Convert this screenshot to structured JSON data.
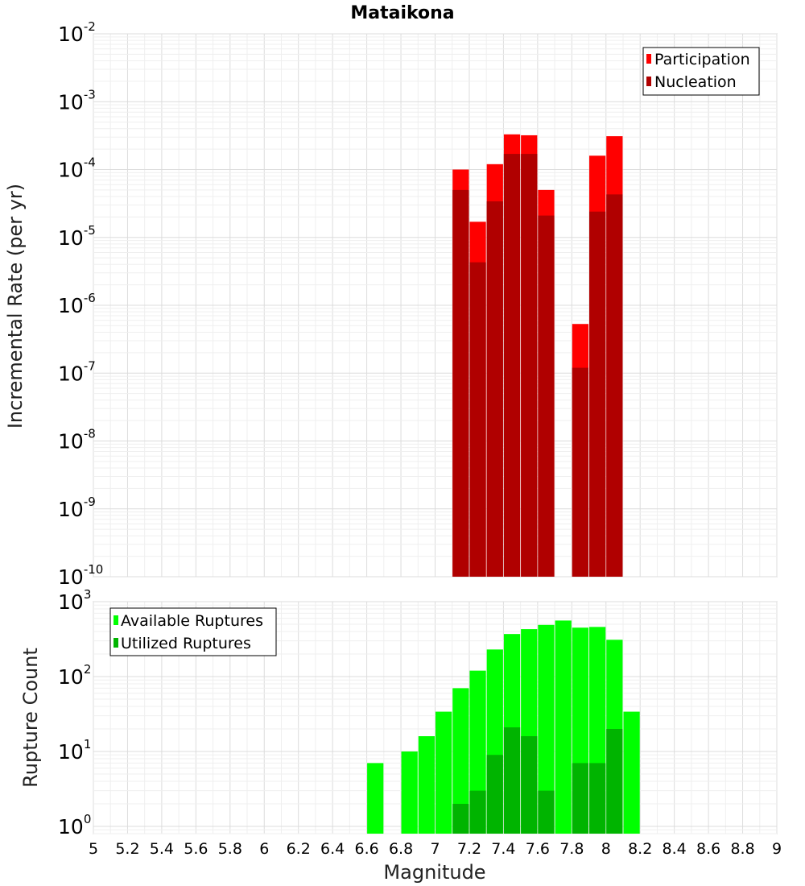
{
  "figure_title": "Mataikona",
  "colors": {
    "participation": "#ff0000",
    "nucleation": "#b00000",
    "available": "#00ff00",
    "utilized": "#00b400"
  },
  "chart_data": [
    {
      "type": "bar",
      "title": "Mataikona",
      "xlabel": "",
      "ylabel": "Incremental Rate (per yr)",
      "yscale": "log",
      "ylim": [
        1e-10,
        0.01
      ],
      "xlim": [
        5,
        9
      ],
      "legend_position": "top-right",
      "y_tick_labels": [
        {
          "base": "10",
          "exp": "-2"
        },
        {
          "base": "10",
          "exp": "-3"
        },
        {
          "base": "10",
          "exp": "-4"
        },
        {
          "base": "10",
          "exp": "-5"
        },
        {
          "base": "10",
          "exp": "-6"
        },
        {
          "base": "10",
          "exp": "-7"
        },
        {
          "base": "10",
          "exp": "-8"
        },
        {
          "base": "10",
          "exp": "-9"
        },
        {
          "base": "10",
          "exp": "-10"
        }
      ],
      "x": [
        7.15,
        7.25,
        7.35,
        7.45,
        7.55,
        7.65,
        7.85,
        7.95,
        8.05
      ],
      "series": [
        {
          "name": "Participation",
          "color": "participation",
          "values": [
            0.0001,
            1.7e-05,
            0.00012,
            0.00033,
            0.00032,
            5e-05,
            5.3e-07,
            0.00016,
            0.00031
          ]
        },
        {
          "name": "Nucleation",
          "color": "nucleation",
          "values": [
            5e-05,
            4.3e-06,
            3.4e-05,
            0.00017,
            0.00017,
            2.1e-05,
            1.2e-07,
            2.4e-05,
            4.3e-05
          ]
        }
      ]
    },
    {
      "type": "bar",
      "title": "",
      "xlabel": "Magnitude",
      "ylabel": "Rupture Count",
      "yscale": "log",
      "ylim": [
        0.8,
        1000
      ],
      "xlim": [
        5,
        9
      ],
      "legend_position": "top-left",
      "y_tick_labels": [
        {
          "base": "10",
          "exp": "3"
        },
        {
          "base": "10",
          "exp": "2"
        },
        {
          "base": "10",
          "exp": "1"
        },
        {
          "base": "10",
          "exp": "0"
        }
      ],
      "x_tick_labels": [
        "5",
        "5.2",
        "5.4",
        "5.6",
        "5.8",
        "6",
        "6.2",
        "6.4",
        "6.6",
        "6.8",
        "7",
        "7.2",
        "7.4",
        "7.6",
        "7.8",
        "8",
        "8.2",
        "8.4",
        "8.6",
        "8.8",
        "9"
      ],
      "x": [
        6.65,
        6.85,
        6.95,
        7.05,
        7.15,
        7.25,
        7.35,
        7.45,
        7.55,
        7.65,
        7.75,
        7.85,
        7.95,
        8.05,
        8.15
      ],
      "series": [
        {
          "name": "Available Ruptures",
          "color": "available",
          "values": [
            7,
            10,
            16,
            34,
            70,
            120,
            230,
            370,
            430,
            490,
            560,
            450,
            460,
            310,
            34
          ]
        },
        {
          "name": "Utilized Ruptures",
          "color": "utilized",
          "values": [
            null,
            null,
            null,
            null,
            2,
            3,
            9,
            21,
            16,
            3,
            null,
            7,
            7,
            20,
            null
          ]
        }
      ]
    }
  ]
}
